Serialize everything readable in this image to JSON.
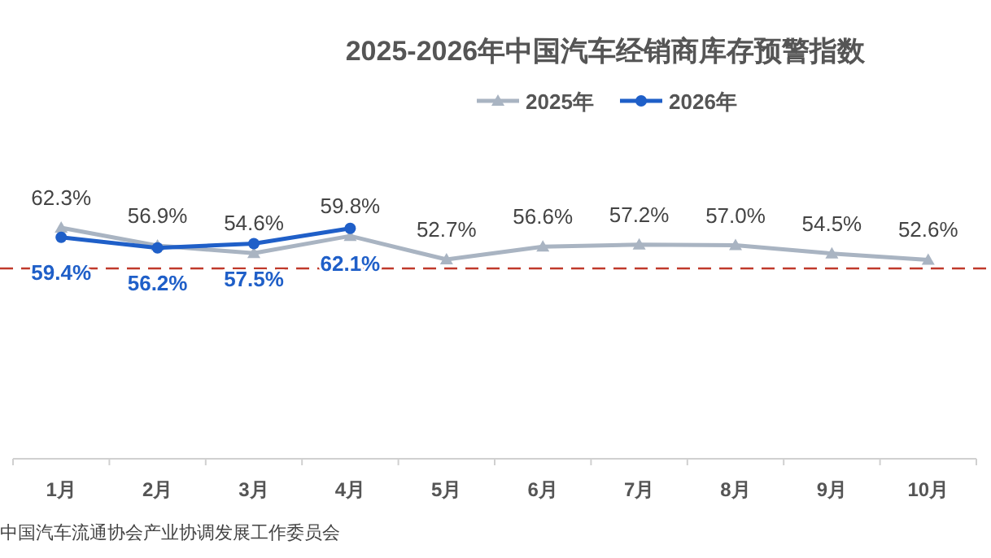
{
  "chart_data": {
    "type": "line",
    "title": "2025-2026年中国汽车经销商库存预警指数",
    "categories": [
      "1月",
      "2月",
      "3月",
      "4月",
      "5月",
      "6月",
      "7月",
      "8月",
      "9月",
      "10月"
    ],
    "series": [
      {
        "name": "2025年",
        "color": "#a9b4c2",
        "marker": "triangle",
        "values": [
          62.3,
          56.9,
          54.6,
          59.8,
          52.7,
          56.6,
          57.2,
          57.0,
          54.5,
          52.6
        ],
        "value_labels": [
          "62.3%",
          "56.9%",
          "54.6%",
          "59.8%",
          "52.7%",
          "56.6%",
          "57.2%",
          "57.0%",
          "54.5%",
          "52.6%"
        ]
      },
      {
        "name": "2026年",
        "color": "#1f5fc8",
        "marker": "circle",
        "values": [
          59.4,
          56.2,
          57.5,
          62.1,
          null,
          null,
          null,
          null,
          null,
          null
        ],
        "value_labels": [
          "59.4%",
          "56.2%",
          "57.5%",
          "62.1%",
          null,
          null,
          null,
          null,
          null,
          null
        ]
      }
    ],
    "ref_lines": [
      {
        "axis": "y",
        "value": 50,
        "color": "#c0392b",
        "line_style": "dashed"
      }
    ],
    "legend": "top",
    "line_style": "solid",
    "annotations": [
      "中国汽车流通协会产业协调发展工作委员会"
    ]
  }
}
